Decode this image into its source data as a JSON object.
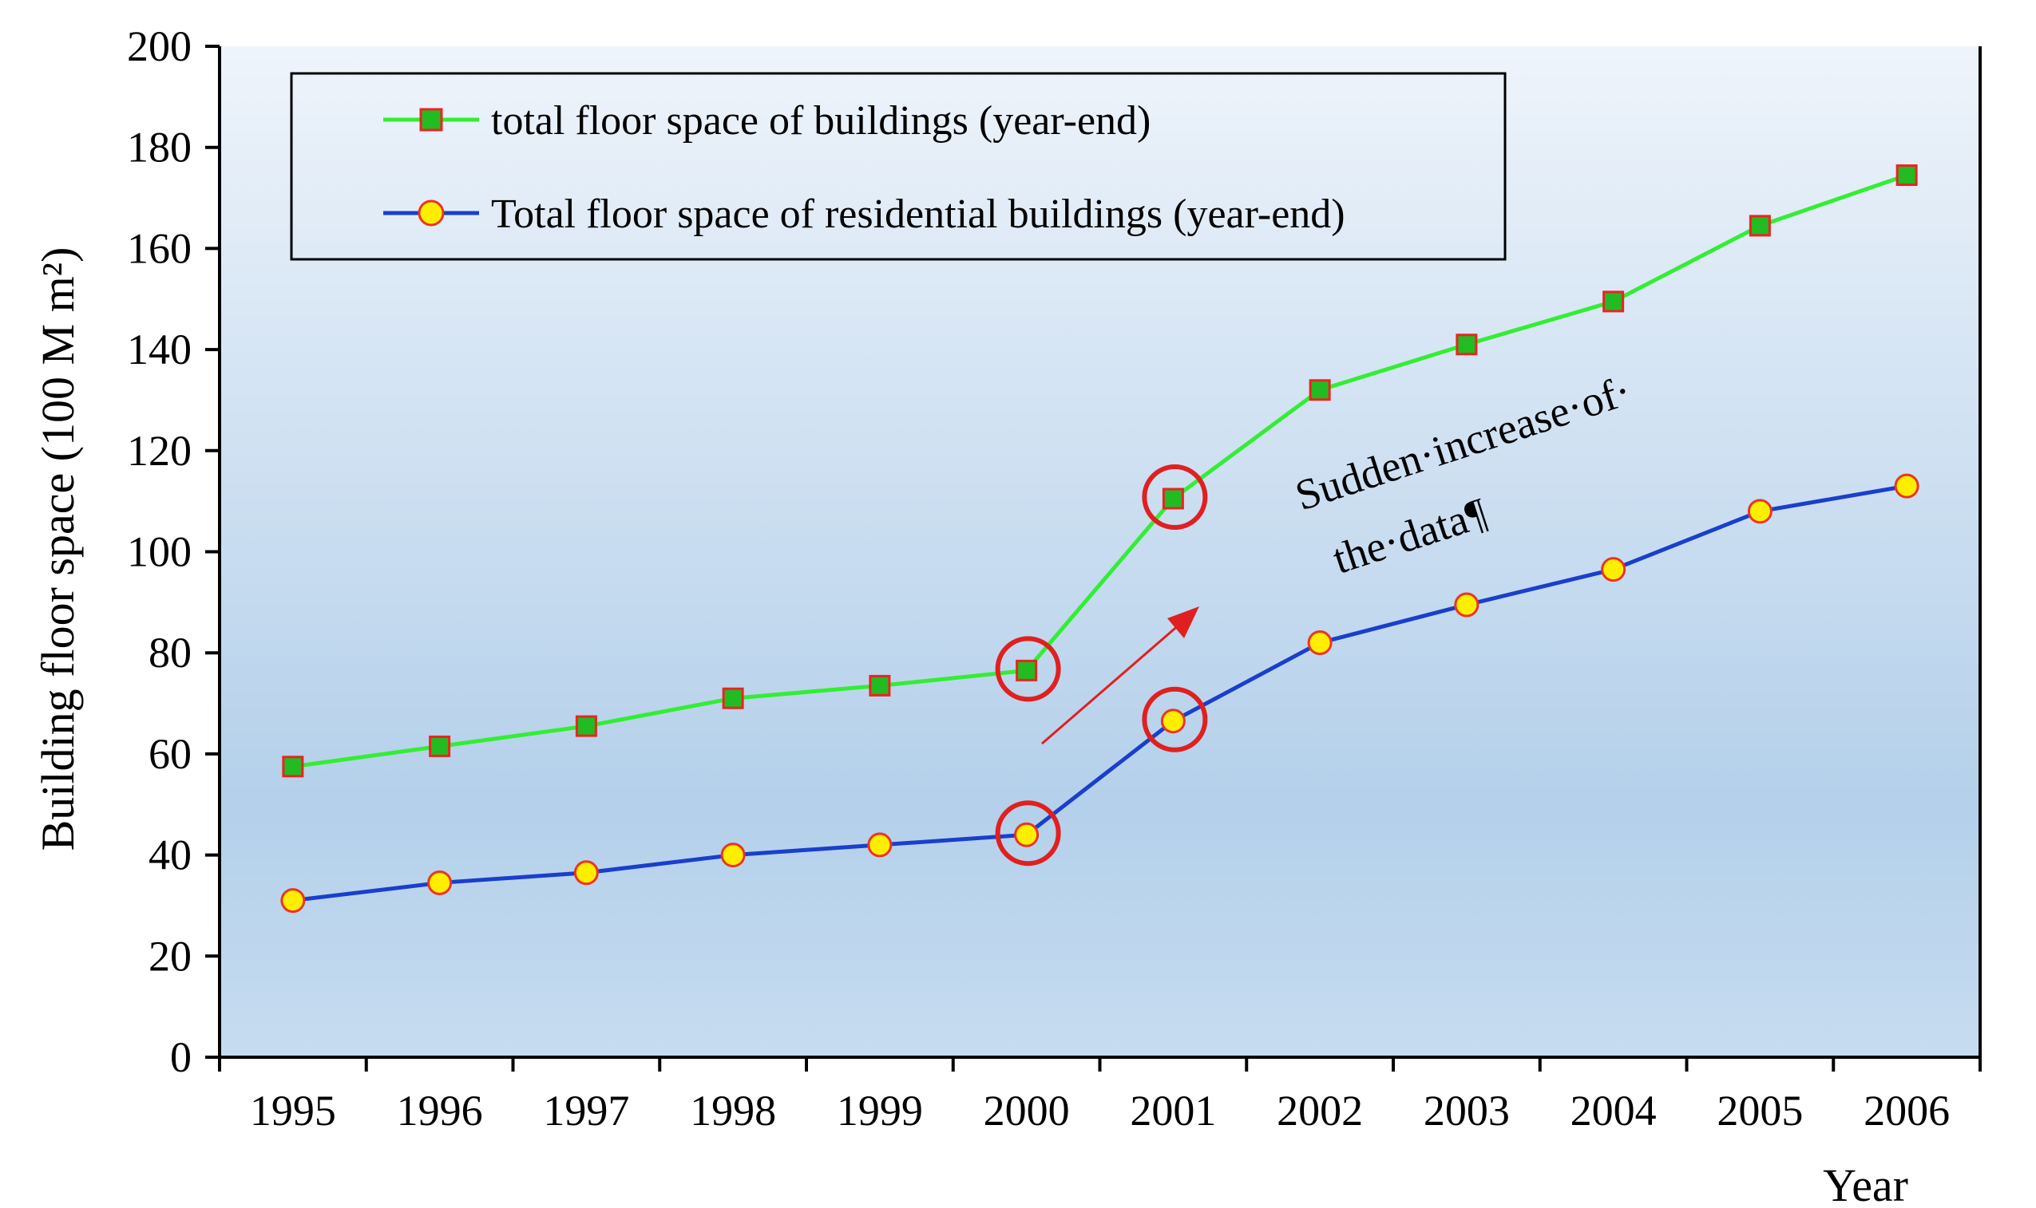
{
  "chart_data": {
    "type": "line",
    "title": "",
    "xlabel": "Year",
    "ylabel": "Building floor space (100 M m²)",
    "x": [
      "1995",
      "1996",
      "1997",
      "1998",
      "1999",
      "2000",
      "2001",
      "2002",
      "2003",
      "2004",
      "2005",
      "2006"
    ],
    "ylim": [
      0,
      200
    ],
    "yticks": [
      "0",
      "20",
      "40",
      "60",
      "80",
      "100",
      "120",
      "140",
      "160",
      "180",
      "200"
    ],
    "grid": false,
    "legend_position": "top-left",
    "series": [
      {
        "name": "total floor space of buildings (year-end)",
        "color": "#33ee33",
        "marker": "square",
        "marker_fill": "#22bb22",
        "marker_edge": "#ee2222",
        "values": [
          57.5,
          61.5,
          65.5,
          71,
          73.5,
          76.5,
          110.5,
          132,
          141,
          149.5,
          164.5,
          174.5
        ]
      },
      {
        "name": "Total floor space of residential buildings (year-end)",
        "color": "#1a3fcc",
        "marker": "circle",
        "marker_fill": "#ffee00",
        "marker_edge": "#ee3322",
        "values": [
          31,
          34.5,
          36.5,
          40,
          42,
          44,
          66.5,
          82,
          89.5,
          96.5,
          108,
          113
        ]
      }
    ],
    "annotations": {
      "text_line1": "Sudden·increase·of·",
      "text_line2": "the·data¶",
      "circle_color": "#e02020",
      "arrow_color": "#e02020",
      "circled_points": [
        {
          "series": 0,
          "index": 5
        },
        {
          "series": 0,
          "index": 6
        },
        {
          "series": 1,
          "index": 5
        },
        {
          "series": 1,
          "index": 6
        }
      ]
    }
  }
}
